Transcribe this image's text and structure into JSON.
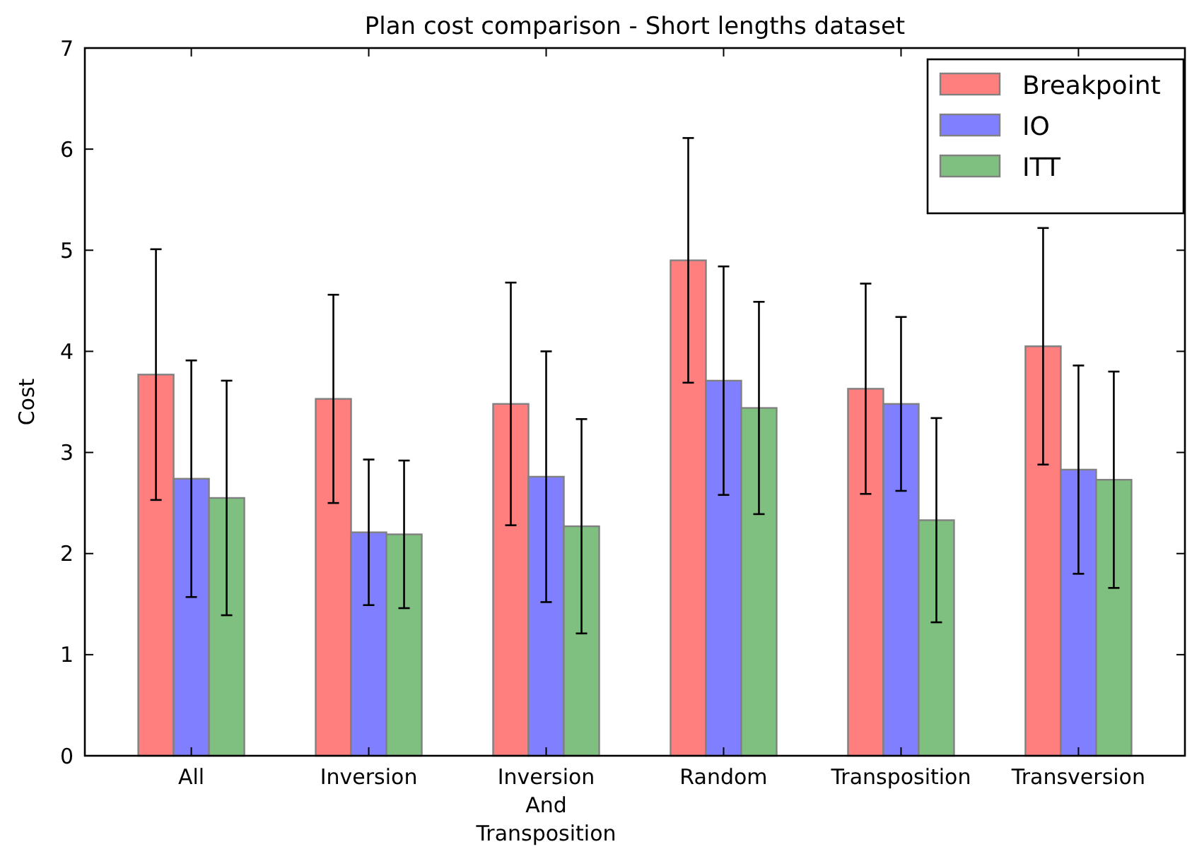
{
  "chart_data": {
    "type": "bar",
    "title": "Plan cost comparison - Short lengths dataset",
    "ylabel": "Cost",
    "categories": [
      "All",
      "Inversion",
      "Inversion\nAnd\nTransposition",
      "Random",
      "Transposition",
      "Transversion"
    ],
    "series": [
      {
        "name": "Breakpoint",
        "color": "#ff7f7f",
        "values": [
          3.77,
          3.53,
          3.48,
          4.9,
          3.63,
          4.05
        ],
        "errors": [
          1.24,
          1.03,
          1.2,
          1.21,
          1.04,
          1.17
        ]
      },
      {
        "name": "IO",
        "color": "#7f7fff",
        "values": [
          2.74,
          2.21,
          2.76,
          3.71,
          3.48,
          2.83
        ],
        "errors": [
          1.17,
          0.72,
          1.24,
          1.13,
          0.86,
          1.03
        ]
      },
      {
        "name": "ITT",
        "color": "#7fbf7f",
        "values": [
          2.55,
          2.19,
          2.27,
          3.44,
          2.33,
          2.73
        ],
        "errors": [
          1.16,
          0.73,
          1.06,
          1.05,
          1.01,
          1.07
        ]
      }
    ],
    "ylim": [
      0,
      7
    ],
    "yticks": [
      0,
      1,
      2,
      3,
      4,
      5,
      6,
      7
    ],
    "grid": false,
    "legend": "top right"
  }
}
